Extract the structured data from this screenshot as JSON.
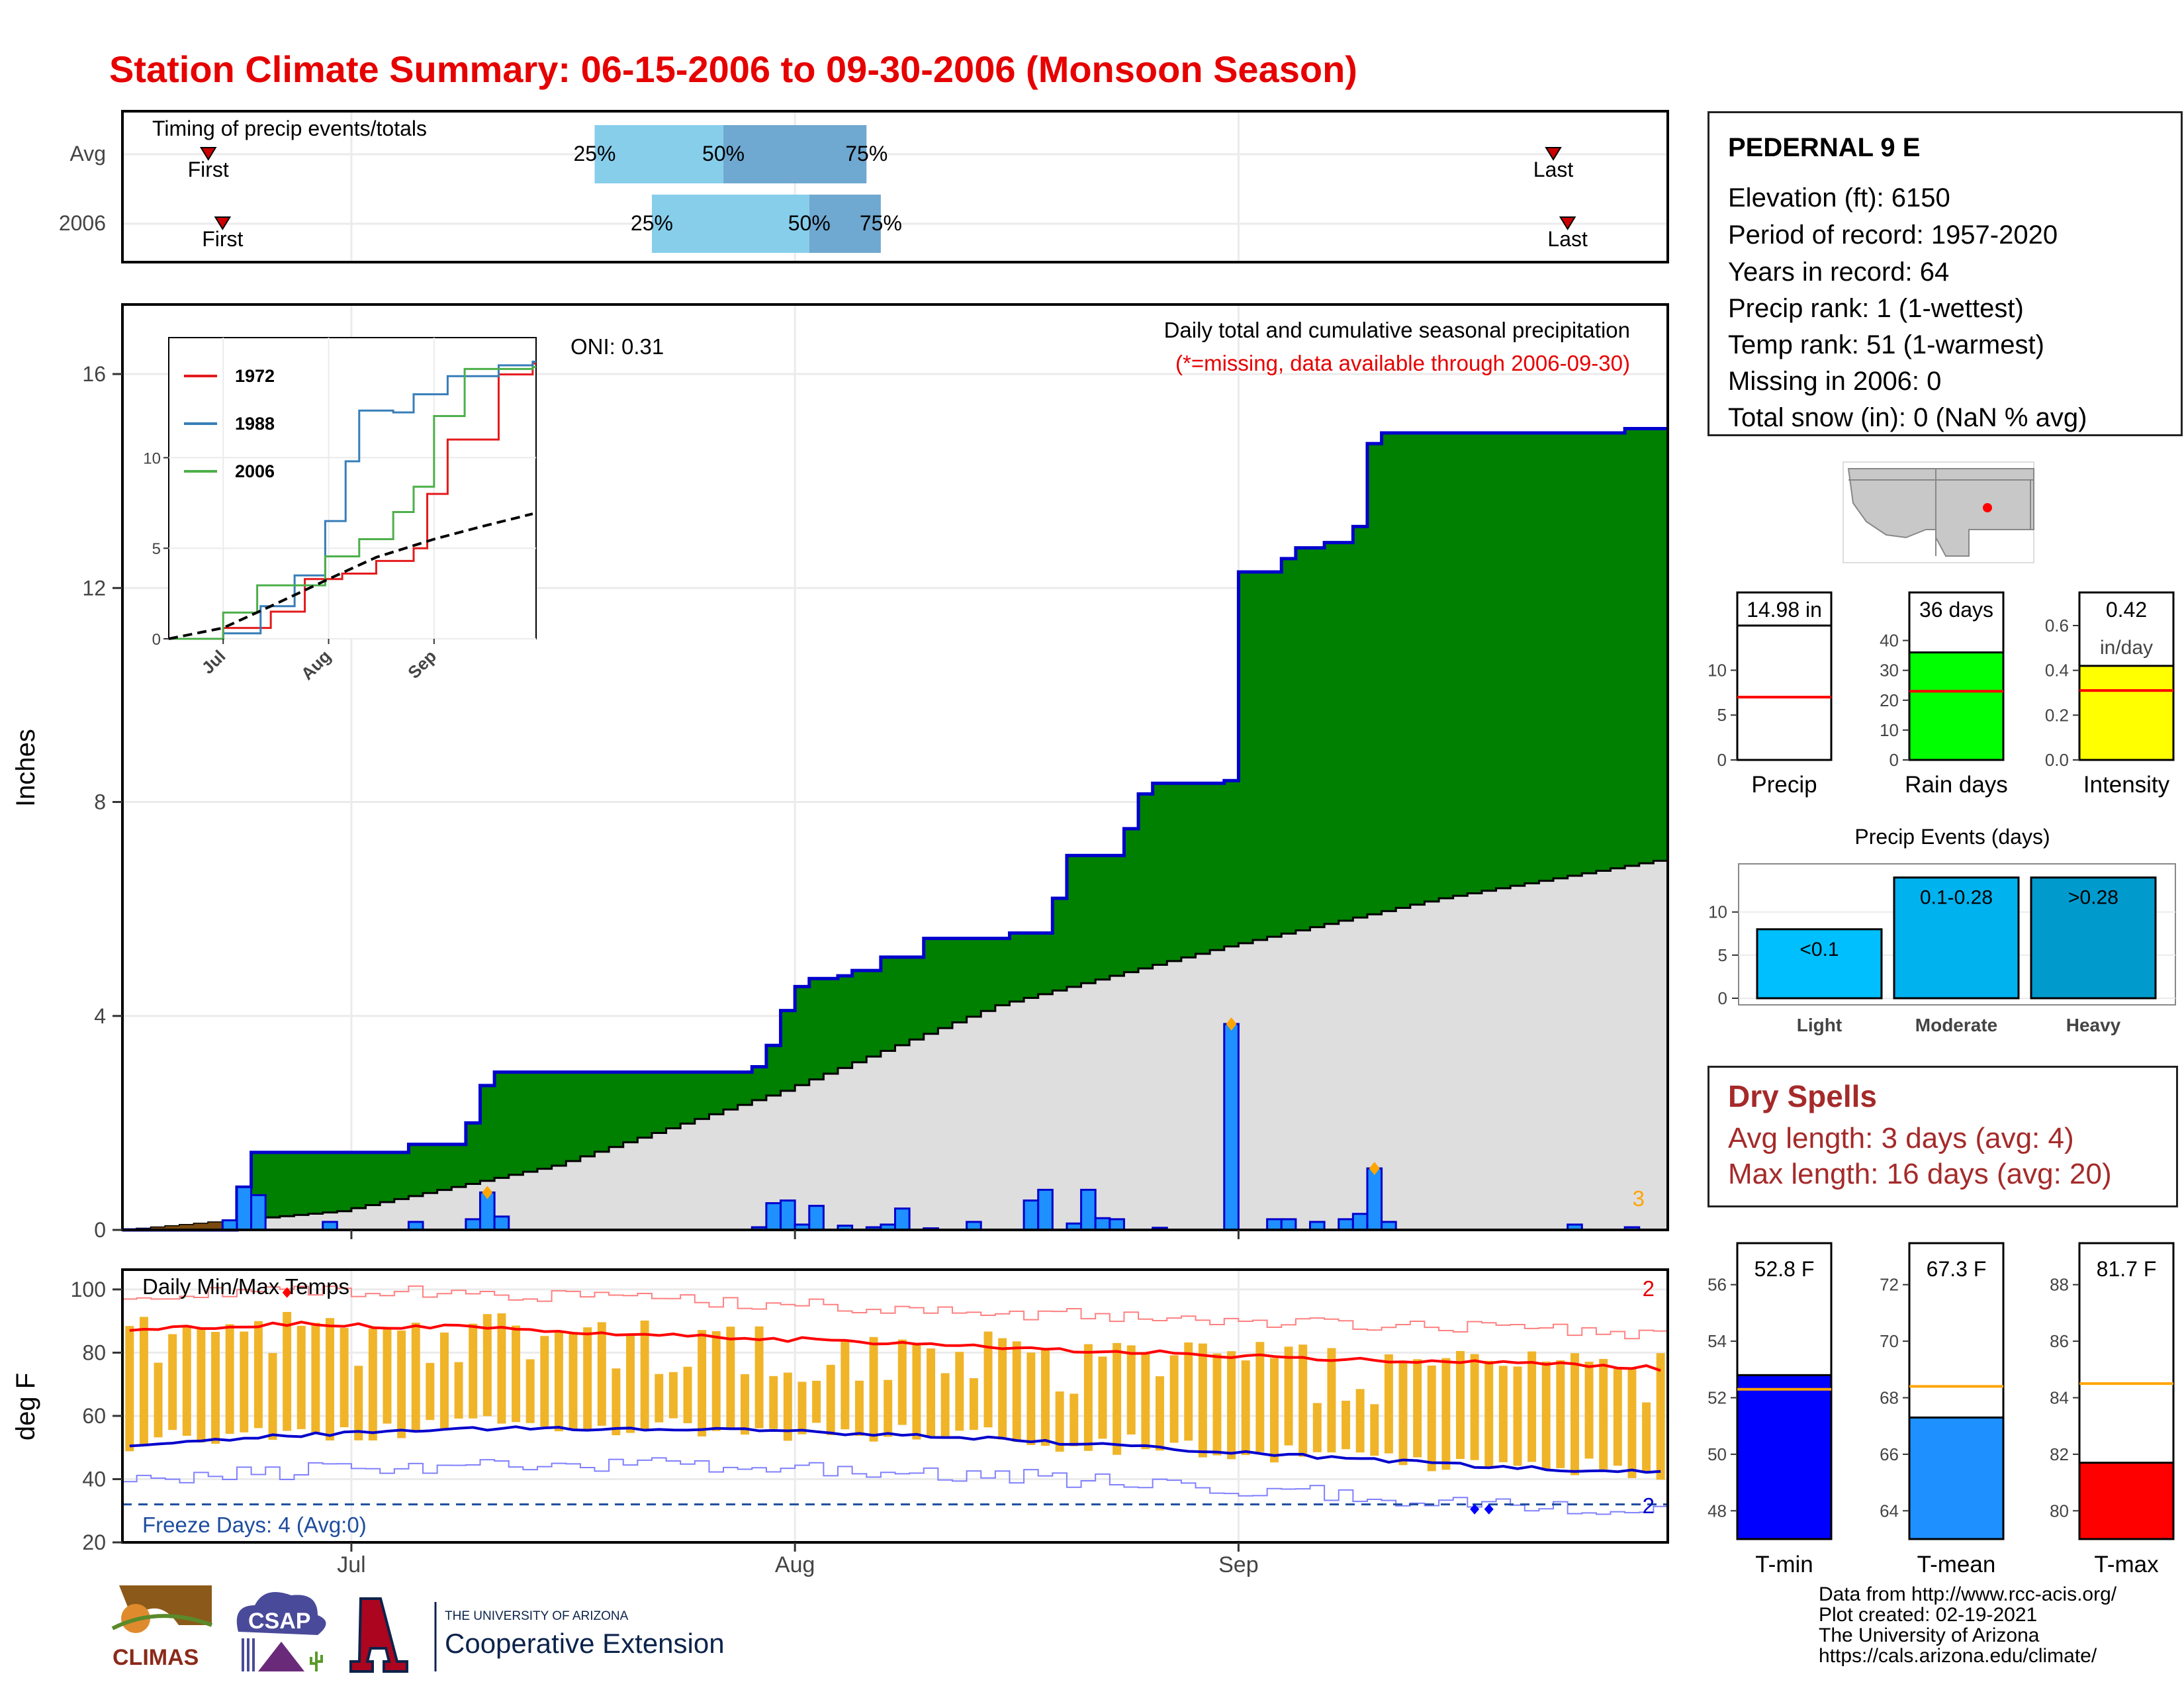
{
  "title": "Station Climate Summary: 06-15-2006 to 09-30-2006 (Monsoon Season)",
  "timing": {
    "label": "Timing of precip events/totals",
    "rows": [
      {
        "name": "Avg",
        "first": "06-21",
        "p25": "07-18",
        "p50": "07-27",
        "p75": "08-06",
        "last": "09-23"
      },
      {
        "name": "2006",
        "first": "06-22",
        "p25": "07-22",
        "p50": "08-02",
        "p75": "08-07",
        "last": "09-24"
      }
    ],
    "first_label": "First",
    "last_label": "Last",
    "p25_label": "25%",
    "p50_label": "50%",
    "p75_label": "75%"
  },
  "months": [
    "Jul",
    "Aug",
    "Sep"
  ],
  "precip_panel": {
    "ylabel": "Inches",
    "yticks": [
      0,
      4,
      8,
      12,
      16
    ],
    "ylim": [
      0,
      16
    ],
    "oni": "ONI: 0.31",
    "caption": "Daily total and cumulative seasonal precipitation",
    "missing_note": "(*=missing, data available through 2006-09-30)",
    "count_label": "3"
  },
  "inset": {
    "yticks": [
      0,
      5,
      10
    ],
    "months": [
      "Jul",
      "Aug",
      "Sep"
    ],
    "legend": [
      {
        "name": "1972",
        "color": "#e41a1c"
      },
      {
        "name": "1988",
        "color": "#377eb8"
      },
      {
        "name": "2006",
        "color": "#4daf4a"
      }
    ]
  },
  "temp_panel": {
    "title": "Daily Min/Max Temps",
    "ylabel": "deg F",
    "yticks": [
      20,
      40,
      60,
      80,
      100
    ],
    "ylim": [
      20,
      105
    ],
    "freeze": "Freeze Days: 4 (Avg:0)",
    "freeze_threshold": 32,
    "record_high_count": "2",
    "record_low_count": "2"
  },
  "station": {
    "name": "PEDERNAL 9 E",
    "lines": [
      "Elevation (ft): 6150",
      "Period of record: 1957-2020",
      "Years in record: 64",
      "Precip rank: 1 (1-wettest)",
      "Temp rank: 51 (1-warmest)",
      "Missing in 2006: 0",
      "Total snow (in): 0 (NaN % avg)"
    ]
  },
  "gauges": [
    {
      "name": "Precip",
      "value_label": "14.98 in",
      "value": 14.98,
      "avg": 7.0,
      "ymax": 14.98,
      "yticks": [
        0,
        5,
        10
      ],
      "fill": "#ffffff"
    },
    {
      "name": "Rain days",
      "value_label": "36 days",
      "value": 36,
      "avg": 23,
      "ymax": 45,
      "yticks": [
        0,
        10,
        20,
        30,
        40
      ],
      "fill": "#00ff00"
    },
    {
      "name": "Intensity",
      "value_label": "0.42",
      "value_label2": "in/day",
      "value": 0.42,
      "avg": 0.31,
      "ymax": 0.6,
      "yticks": [
        "0.0",
        "0.2",
        "0.4",
        "0.6"
      ],
      "fill": "#ffff00"
    }
  ],
  "events": {
    "title": "Precip Events (days)",
    "yticks": [
      0,
      5,
      10
    ],
    "bars": [
      {
        "name": "Light",
        "label": "<0.1",
        "value": 8,
        "color": "#00bfff"
      },
      {
        "name": "Moderate",
        "label": "0.1-0.28",
        "value": 14,
        "color": "#00b2ee"
      },
      {
        "name": "Heavy",
        "label": ">0.28",
        "value": 14,
        "color": "#009acd"
      }
    ]
  },
  "dry_spells": {
    "title": "Dry Spells",
    "avg_line": "Avg length: 3 days (avg: 4)",
    "max_line": "Max length: 16 days (avg: 20)"
  },
  "temp_gauges": [
    {
      "name": "T-min",
      "value_label": "52.8 F",
      "value": 52.8,
      "avg": 52.3,
      "ymin": 47,
      "ymax": 57,
      "yticks": [
        48,
        50,
        52,
        54,
        56
      ],
      "fill": "#0000ff"
    },
    {
      "name": "T-mean",
      "value_label": "67.3 F",
      "value": 67.3,
      "avg": 68.4,
      "ymin": 63,
      "ymax": 73,
      "yticks": [
        64,
        66,
        68,
        70,
        72
      ],
      "fill": "#1e90ff"
    },
    {
      "name": "T-max",
      "value_label": "81.7 F",
      "value": 81.7,
      "avg": 84.5,
      "ymin": 79,
      "ymax": 89,
      "yticks": [
        80,
        82,
        84,
        86,
        88
      ],
      "fill": "#ff0000"
    }
  ],
  "footer": {
    "lines": [
      "Data from http://www.rcc-acis.org/",
      "Plot created: 02-19-2021",
      "The University of Arizona",
      "https://cals.arizona.edu/climate/"
    ],
    "logo_climas": "CLIMAS",
    "logo_csap": "CSAP",
    "logo_ua_small": "THE UNIVERSITY OF ARIZONA",
    "logo_ua_big": "Cooperative Extension"
  },
  "chart_data": {
    "type": "area",
    "x_start": "2006-06-15",
    "x_end": "2006-09-30",
    "cumulative_2006_steps": [
      [
        "2006-06-15",
        0.0
      ],
      [
        "2006-06-23",
        0.8
      ],
      [
        "2006-06-24",
        1.45
      ],
      [
        "2006-07-05",
        1.6
      ],
      [
        "2006-07-09",
        2.0
      ],
      [
        "2006-07-10",
        2.7
      ],
      [
        "2006-07-11",
        2.95
      ],
      [
        "2006-07-29",
        3.05
      ],
      [
        "2006-07-30",
        3.45
      ],
      [
        "2006-07-31",
        4.1
      ],
      [
        "2006-08-01",
        4.55
      ],
      [
        "2006-08-02",
        4.7
      ],
      [
        "2006-08-04",
        4.75
      ],
      [
        "2006-08-05",
        4.85
      ],
      [
        "2006-08-07",
        5.1
      ],
      [
        "2006-08-10",
        5.45
      ],
      [
        "2006-08-16",
        5.55
      ],
      [
        "2006-08-19",
        6.2
      ],
      [
        "2006-08-20",
        7.0
      ],
      [
        "2006-08-24",
        7.5
      ],
      [
        "2006-08-25",
        8.15
      ],
      [
        "2006-08-26",
        8.35
      ],
      [
        "2006-08-31",
        8.4
      ],
      [
        "2006-09-01",
        12.3
      ],
      [
        "2006-09-04",
        12.55
      ],
      [
        "2006-09-05",
        12.75
      ],
      [
        "2006-09-07",
        12.85
      ],
      [
        "2006-09-09",
        13.15
      ],
      [
        "2006-09-10",
        14.7
      ],
      [
        "2006-09-11",
        14.9
      ],
      [
        "2006-09-28",
        14.98
      ]
    ],
    "avg_cumulative": [
      [
        "2006-06-15",
        0.0
      ],
      [
        "2006-06-30",
        0.35
      ],
      [
        "2006-07-15",
        1.2
      ],
      [
        "2006-07-31",
        2.6
      ],
      [
        "2006-08-15",
        4.2
      ],
      [
        "2006-08-31",
        5.3
      ],
      [
        "2006-09-15",
        6.2
      ],
      [
        "2006-09-30",
        6.9
      ]
    ],
    "daily_precip": [
      [
        "2006-06-22",
        0.18
      ],
      [
        "2006-06-23",
        0.8
      ],
      [
        "2006-06-24",
        0.65
      ],
      [
        "2006-06-29",
        0.15
      ],
      [
        "2006-07-05",
        0.15
      ],
      [
        "2006-07-09",
        0.2
      ],
      [
        "2006-07-10",
        0.7
      ],
      [
        "2006-07-11",
        0.25
      ],
      [
        "2006-07-29",
        0.05
      ],
      [
        "2006-07-30",
        0.5
      ],
      [
        "2006-07-31",
        0.55
      ],
      [
        "2006-08-01",
        0.1
      ],
      [
        "2006-08-02",
        0.45
      ],
      [
        "2006-08-04",
        0.08
      ],
      [
        "2006-08-06",
        0.05
      ],
      [
        "2006-08-07",
        0.1
      ],
      [
        "2006-08-08",
        0.4
      ],
      [
        "2006-08-10",
        0.03
      ],
      [
        "2006-08-13",
        0.15
      ],
      [
        "2006-08-17",
        0.55
      ],
      [
        "2006-08-18",
        0.75
      ],
      [
        "2006-08-20",
        0.12
      ],
      [
        "2006-08-21",
        0.75
      ],
      [
        "2006-08-22",
        0.22
      ],
      [
        "2006-08-23",
        0.2
      ],
      [
        "2006-08-26",
        0.04
      ],
      [
        "2006-08-31",
        3.85
      ],
      [
        "2006-09-03",
        0.2
      ],
      [
        "2006-09-04",
        0.2
      ],
      [
        "2006-09-06",
        0.15
      ],
      [
        "2006-09-08",
        0.2
      ],
      [
        "2006-09-09",
        0.3
      ],
      [
        "2006-09-10",
        1.15
      ],
      [
        "2006-09-11",
        0.15
      ],
      [
        "2006-09-24",
        0.1
      ],
      [
        "2006-09-28",
        0.05
      ]
    ],
    "inset_series": {
      "1972": [
        [
          "07-01",
          0.6
        ],
        [
          "07-15",
          1.5
        ],
        [
          "07-25",
          3.3
        ],
        [
          "08-05",
          3.6
        ],
        [
          "08-15",
          4.3
        ],
        [
          "08-26",
          5.0
        ],
        [
          "08-30",
          8.0
        ],
        [
          "09-05",
          11.0
        ],
        [
          "09-20",
          14.6
        ],
        [
          "09-30",
          15.2
        ]
      ],
      "1988": [
        [
          "07-01",
          0.3
        ],
        [
          "07-12",
          1.8
        ],
        [
          "07-22",
          3.5
        ],
        [
          "07-31",
          6.5
        ],
        [
          "08-06",
          9.8
        ],
        [
          "08-10",
          12.6
        ],
        [
          "08-20",
          12.5
        ],
        [
          "08-26",
          13.5
        ],
        [
          "09-05",
          14.5
        ],
        [
          "09-20",
          15.1
        ],
        [
          "09-30",
          15.3
        ]
      ],
      "2006": [
        [
          "07-01",
          1.45
        ],
        [
          "07-11",
          2.95
        ],
        [
          "07-31",
          4.55
        ],
        [
          "08-10",
          5.5
        ],
        [
          "08-20",
          7.0
        ],
        [
          "08-26",
          8.4
        ],
        [
          "09-01",
          12.3
        ],
        [
          "09-10",
          14.9
        ],
        [
          "09-30",
          15.0
        ]
      ],
      "avg": [
        [
          "06-15",
          0
        ],
        [
          "07-01",
          0.6
        ],
        [
          "07-15",
          1.8
        ],
        [
          "08-01",
          3.3
        ],
        [
          "08-15",
          4.5
        ],
        [
          "09-01",
          5.5
        ],
        [
          "09-15",
          6.2
        ],
        [
          "09-30",
          6.9
        ]
      ]
    },
    "temps_avg_max": [
      87,
      89,
      88,
      86,
      84,
      82,
      80,
      78,
      77,
      75
    ],
    "temps_avg_min": [
      51,
      54,
      56,
      56,
      55,
      53,
      50,
      47,
      44,
      42
    ]
  }
}
